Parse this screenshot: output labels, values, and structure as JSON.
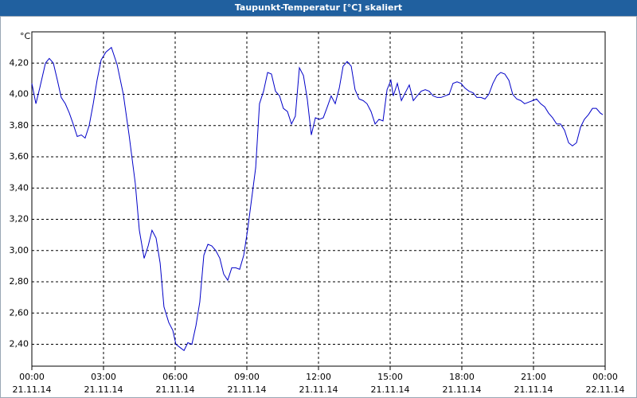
{
  "chart_data": {
    "type": "line",
    "title": "Taupunkt-Temperatur [°C] skaliert",
    "y_unit": "°C",
    "x": [
      0,
      0.17,
      0.33,
      0.57,
      0.73,
      0.9,
      1.07,
      1.23,
      1.4,
      1.57,
      1.73,
      1.9,
      2.07,
      2.23,
      2.4,
      2.57,
      2.73,
      2.9,
      3.1,
      3.33,
      3.57,
      3.83,
      4.07,
      4.33,
      4.5,
      4.7,
      4.87,
      5.03,
      5.2,
      5.37,
      5.53,
      5.73,
      5.9,
      6.03,
      6.2,
      6.37,
      6.53,
      6.7,
      6.87,
      7.03,
      7.2,
      7.37,
      7.53,
      7.7,
      7.87,
      8.03,
      8.2,
      8.37,
      8.53,
      8.7,
      8.87,
      9.03,
      9.2,
      9.37,
      9.53,
      9.7,
      9.87,
      10.03,
      10.2,
      10.37,
      10.53,
      10.7,
      10.87,
      11.03,
      11.2,
      11.37,
      11.53,
      11.7,
      11.87,
      12.03,
      12.2,
      12.37,
      12.53,
      12.7,
      12.87,
      13.03,
      13.2,
      13.37,
      13.53,
      13.7,
      13.87,
      14.03,
      14.2,
      14.37,
      14.53,
      14.7,
      14.87,
      15.03,
      15.13,
      15.3,
      15.47,
      15.63,
      15.8,
      15.97,
      16.13,
      16.3,
      16.47,
      16.63,
      16.8,
      16.97,
      17.13,
      17.3,
      17.47,
      17.63,
      17.8,
      17.97,
      18.13,
      18.3,
      18.47,
      18.63,
      18.8,
      18.97,
      19.13,
      19.3,
      19.47,
      19.63,
      19.8,
      19.97,
      20.13,
      20.3,
      20.47,
      20.63,
      20.8,
      20.97,
      21.13,
      21.3,
      21.47,
      21.63,
      21.8,
      21.97,
      22.13,
      22.3,
      22.47,
      22.63,
      22.8,
      22.97,
      23.13,
      23.3,
      23.47,
      23.63,
      23.8,
      23.9
    ],
    "series": [
      {
        "color": "#0000c8",
        "values": [
          4.07,
          3.94,
          4.04,
          4.2,
          4.23,
          4.2,
          4.09,
          3.98,
          3.94,
          3.88,
          3.81,
          3.73,
          3.74,
          3.72,
          3.8,
          3.94,
          4.09,
          4.22,
          4.27,
          4.3,
          4.19,
          4.0,
          3.74,
          3.43,
          3.13,
          2.95,
          3.03,
          3.13,
          3.08,
          2.92,
          2.64,
          2.54,
          2.49,
          2.4,
          2.38,
          2.36,
          2.41,
          2.4,
          2.52,
          2.67,
          2.97,
          3.04,
          3.03,
          3.0,
          2.95,
          2.85,
          2.81,
          2.89,
          2.89,
          2.88,
          2.97,
          3.13,
          3.33,
          3.53,
          3.94,
          4.02,
          4.14,
          4.13,
          4.02,
          3.99,
          3.91,
          3.89,
          3.81,
          3.86,
          4.17,
          4.12,
          3.97,
          3.74,
          3.85,
          3.84,
          3.85,
          3.92,
          3.99,
          3.94,
          4.04,
          4.18,
          4.21,
          4.18,
          4.03,
          3.97,
          3.96,
          3.94,
          3.89,
          3.81,
          3.84,
          3.83,
          4.03,
          4.09,
          3.99,
          4.07,
          3.96,
          4.01,
          4.06,
          3.96,
          3.99,
          4.02,
          4.03,
          4.02,
          3.99,
          3.98,
          3.98,
          3.99,
          4.0,
          4.07,
          4.08,
          4.07,
          4.04,
          4.02,
          4.01,
          3.98,
          3.98,
          3.97,
          4.0,
          4.07,
          4.12,
          4.14,
          4.13,
          4.09,
          4.0,
          3.97,
          3.96,
          3.94,
          3.95,
          3.96,
          3.97,
          3.94,
          3.92,
          3.88,
          3.85,
          3.81,
          3.81,
          3.77,
          3.69,
          3.67,
          3.69,
          3.79,
          3.84,
          3.87,
          3.91,
          3.91,
          3.88,
          3.87
        ]
      }
    ],
    "xlim": [
      0,
      24
    ],
    "xticks": [
      {
        "value": 0,
        "label": "00:00",
        "date": "21.11.14"
      },
      {
        "value": 3,
        "label": "03:00",
        "date": "21.11.14"
      },
      {
        "value": 6,
        "label": "06:00",
        "date": "21.11.14"
      },
      {
        "value": 9,
        "label": "09:00",
        "date": "21.11.14"
      },
      {
        "value": 12,
        "label": "12:00",
        "date": "21.11.14"
      },
      {
        "value": 15,
        "label": "15:00",
        "date": "21.11.14"
      },
      {
        "value": 18,
        "label": "18:00",
        "date": "21.11.14"
      },
      {
        "value": 21,
        "label": "21:00",
        "date": "21.11.14"
      },
      {
        "value": 24,
        "label": "00:00",
        "date": "22.11.14"
      }
    ],
    "ylim": [
      2.26,
      4.4
    ],
    "yticks": [
      {
        "value": 2.4,
        "label": "2,40"
      },
      {
        "value": 2.6,
        "label": "2,60"
      },
      {
        "value": 2.8,
        "label": "2,80"
      },
      {
        "value": 3.0,
        "label": "3,00"
      },
      {
        "value": 3.2,
        "label": "3,20"
      },
      {
        "value": 3.4,
        "label": "3,40"
      },
      {
        "value": 3.6,
        "label": "3,60"
      },
      {
        "value": 3.8,
        "label": "3,80"
      },
      {
        "value": 4.0,
        "label": "4,00"
      },
      {
        "value": 4.2,
        "label": "4,20"
      }
    ],
    "grid": true
  }
}
